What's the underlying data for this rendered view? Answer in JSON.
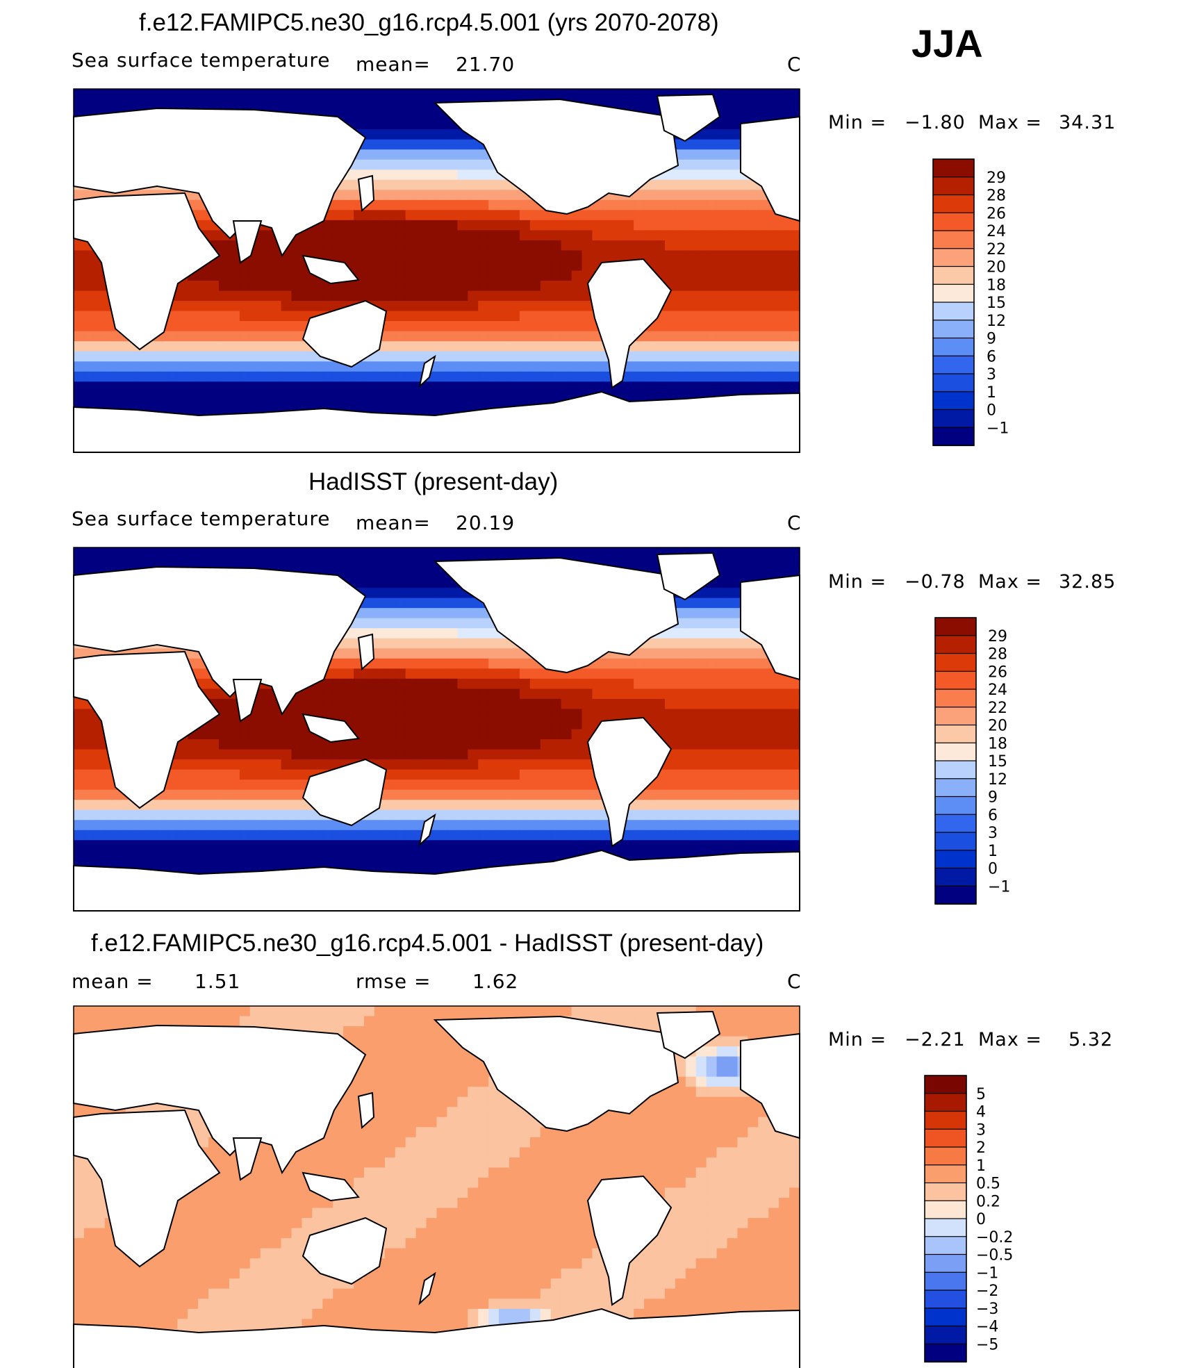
{
  "season": "JJA",
  "palettes": {
    "sst": [
      "#000080",
      "#001aa6",
      "#0033cc",
      "#1a4fe0",
      "#3366ee",
      "#5c8ef5",
      "#8ab0fa",
      "#b8d2fd",
      "#deebff",
      "#fde9d9",
      "#fcc9a8",
      "#fba27a",
      "#f97d4d",
      "#f45a28",
      "#dd3a0a",
      "#b42000",
      "#8a0d00"
    ],
    "diff": [
      "#000080",
      "#001aa6",
      "#0033cc",
      "#2350e0",
      "#4a76ee",
      "#7a9ff5",
      "#a9c4fa",
      "#d2e2fd",
      "#fde6d3",
      "#fcc3a0",
      "#fb9e6e",
      "#f77a45",
      "#ef5522",
      "#d63508",
      "#a81a00",
      "#7a0600"
    ]
  },
  "chart_data": [
    {
      "type": "heatmap",
      "title": "f.e12.FAMIPC5.ne30_g16.rcp4.5.001 (yrs 2070-2078)",
      "variable": "Sea surface temperature",
      "mean_label": "mean=",
      "mean": "21.70",
      "units": "C",
      "min_label": "Min =",
      "min": "−1.80",
      "max_label": "Max =",
      "max": "34.31",
      "colorbar_levels": [
        "29",
        "28",
        "26",
        "24",
        "22",
        "20",
        "18",
        "15",
        "12",
        "9",
        "6",
        "3",
        "1",
        "0",
        "−1"
      ]
    },
    {
      "type": "heatmap",
      "title": "HadISST (present-day)",
      "variable": "Sea surface temperature",
      "mean_label": "mean=",
      "mean": "20.19",
      "units": "C",
      "min_label": "Min =",
      "min": "−0.78",
      "max_label": "Max =",
      "max": "32.85",
      "colorbar_levels": [
        "29",
        "28",
        "26",
        "24",
        "22",
        "20",
        "18",
        "15",
        "12",
        "9",
        "6",
        "3",
        "1",
        "0",
        "−1"
      ]
    },
    {
      "type": "heatmap",
      "title": "f.e12.FAMIPC5.ne30_g16.rcp4.5.001 - HadISST (present-day)",
      "mean_label": "mean =",
      "mean": "1.51",
      "rmse_label": "rmse =",
      "rmse": "1.62",
      "units": "C",
      "min_label": "Min =",
      "min": "−2.21",
      "max_label": "Max =",
      "max": "5.32",
      "colorbar_levels": [
        "5",
        "4",
        "3",
        "2",
        "1",
        "0.5",
        "0.2",
        "0",
        "−0.2",
        "−0.5",
        "−1",
        "−2",
        "−3",
        "−4",
        "−5"
      ]
    }
  ]
}
